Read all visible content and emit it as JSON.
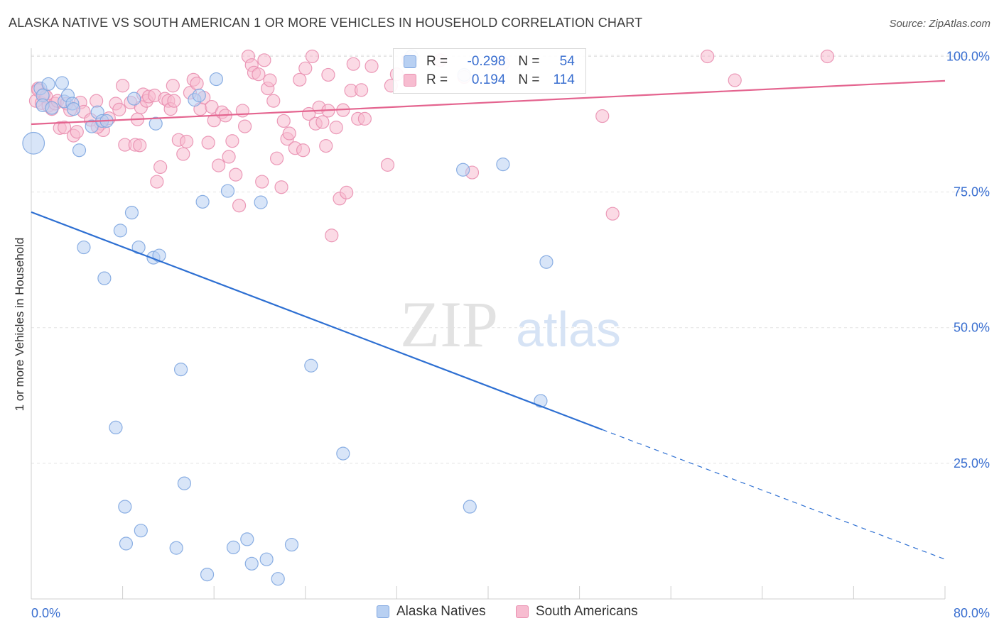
{
  "title": "ALASKA NATIVE VS SOUTH AMERICAN 1 OR MORE VEHICLES IN HOUSEHOLD CORRELATION CHART",
  "source": "Source: ZipAtlas.com",
  "watermark": {
    "zip": "ZIP",
    "atlas": "atlas"
  },
  "legend": {
    "rows": [
      {
        "r_label": "R =",
        "r_value": "-0.298",
        "n_label": "N =",
        "n_value": "54"
      },
      {
        "r_label": "R =",
        "r_value": "0.194",
        "n_label": "N =",
        "n_value": "114"
      }
    ]
  },
  "colors": {
    "blue_fill": "#b8d0f2",
    "blue_stroke": "#7ea6e0",
    "blue_line": "#2d6fd2",
    "pink_fill": "#f7bcd0",
    "pink_stroke": "#e98fb0",
    "pink_line": "#e4648f",
    "tick_label": "#3a6fd0",
    "grid": "#e3e3e3"
  },
  "chart_data": {
    "type": "scatter",
    "title": "ALASKA NATIVE VS SOUTH AMERICAN 1 OR MORE VEHICLES IN HOUSEHOLD CORRELATION CHART",
    "xlabel": "",
    "ylabel": "1 or more Vehicles in Household",
    "xlim": [
      0,
      80
    ],
    "ylim": [
      0,
      101.5
    ],
    "x_tick_labels": [
      "0.0%",
      "80.0%"
    ],
    "y_tick_labels": [
      {
        "value": 25,
        "label": "25.0%"
      },
      {
        "value": 50,
        "label": "50.0%"
      },
      {
        "value": 75,
        "label": "75.0%"
      },
      {
        "value": 100,
        "label": "100.0%"
      }
    ],
    "grid": true,
    "legend_position": "bottom",
    "series": [
      {
        "name": "Alaska Natives",
        "trend": {
          "x0": 0,
          "y0": 71.3,
          "x1": 50,
          "y1": 31.2,
          "dashed_to_x": 80,
          "dashed_to_y": 7.3
        },
        "points": [
          [
            0.2,
            84.0,
            1.7
          ],
          [
            0.8,
            94.1,
            1
          ],
          [
            1.0,
            92.8,
            1
          ],
          [
            1.0,
            91.0,
            1
          ],
          [
            1.5,
            94.9,
            1
          ],
          [
            1.8,
            90.5,
            1
          ],
          [
            2.7,
            95.1,
            1
          ],
          [
            2.9,
            91.7,
            1
          ],
          [
            3.2,
            92.8,
            1
          ],
          [
            3.6,
            91.3,
            1
          ],
          [
            3.7,
            90.3,
            1
          ],
          [
            4.2,
            82.7,
            1
          ],
          [
            4.6,
            64.8,
            1
          ],
          [
            5.3,
            87.1,
            1
          ],
          [
            5.8,
            89.7,
            1
          ],
          [
            6.2,
            88.1,
            1
          ],
          [
            6.4,
            59.1,
            1
          ],
          [
            6.6,
            88.1,
            1
          ],
          [
            7.4,
            31.6,
            1
          ],
          [
            7.8,
            67.9,
            1
          ],
          [
            8.2,
            17.0,
            1
          ],
          [
            8.3,
            10.2,
            1
          ],
          [
            8.8,
            71.2,
            1
          ],
          [
            9.0,
            92.2,
            1
          ],
          [
            9.4,
            64.8,
            1
          ],
          [
            9.6,
            12.6,
            1
          ],
          [
            10.7,
            62.9,
            1
          ],
          [
            10.9,
            87.6,
            1
          ],
          [
            11.2,
            63.3,
            1
          ],
          [
            12.7,
            9.4,
            1
          ],
          [
            13.1,
            42.3,
            1
          ],
          [
            13.4,
            21.3,
            1
          ],
          [
            14.3,
            92.0,
            1
          ],
          [
            14.7,
            92.8,
            1
          ],
          [
            15.0,
            73.2,
            1
          ],
          [
            15.4,
            4.5,
            1
          ],
          [
            16.2,
            95.8,
            1
          ],
          [
            17.2,
            75.2,
            1
          ],
          [
            17.7,
            9.5,
            1
          ],
          [
            18.9,
            11.0,
            1
          ],
          [
            19.3,
            6.5,
            1
          ],
          [
            20.1,
            73.1,
            1
          ],
          [
            20.6,
            7.3,
            1
          ],
          [
            21.6,
            3.7,
            1
          ],
          [
            22.8,
            10.0,
            1
          ],
          [
            24.5,
            43.0,
            1
          ],
          [
            27.3,
            26.8,
            1
          ],
          [
            33.3,
            100.0,
            1
          ],
          [
            37.8,
            79.1,
            1
          ],
          [
            37.9,
            96.6,
            1
          ],
          [
            38.4,
            17.0,
            1
          ],
          [
            41.3,
            80.1,
            1
          ],
          [
            44.6,
            36.5,
            1
          ],
          [
            45.1,
            62.1,
            1
          ]
        ]
      },
      {
        "name": "South Americans",
        "trend": {
          "x0": 0,
          "y0": 87.5,
          "x1": 80,
          "y1": 95.5
        },
        "points": [
          [
            0.4,
            91.8,
            1
          ],
          [
            0.6,
            94.1,
            1
          ],
          [
            0.6,
            93.8,
            1
          ],
          [
            0.9,
            91.4,
            1
          ],
          [
            1.1,
            93.0,
            1
          ],
          [
            1.3,
            92.6,
            1
          ],
          [
            1.5,
            90.9,
            1
          ],
          [
            1.8,
            90.3,
            1
          ],
          [
            2.1,
            91.3,
            1
          ],
          [
            2.3,
            91.8,
            1
          ],
          [
            2.5,
            86.8,
            1
          ],
          [
            2.9,
            86.9,
            1
          ],
          [
            3.1,
            91.3,
            1
          ],
          [
            3.4,
            90.1,
            1
          ],
          [
            3.7,
            85.4,
            1
          ],
          [
            4.0,
            86.1,
            1
          ],
          [
            4.3,
            91.5,
            1
          ],
          [
            4.6,
            89.8,
            1
          ],
          [
            5.2,
            88.3,
            1
          ],
          [
            5.7,
            91.8,
            1
          ],
          [
            6.1,
            87.6,
            1
          ],
          [
            6.3,
            86.4,
            1
          ],
          [
            6.8,
            88.6,
            1
          ],
          [
            7.4,
            91.3,
            1
          ],
          [
            7.7,
            90.2,
            1
          ],
          [
            8.0,
            94.6,
            1
          ],
          [
            8.2,
            83.7,
            1
          ],
          [
            8.7,
            91.5,
            1
          ],
          [
            9.1,
            83.7,
            1
          ],
          [
            9.3,
            88.4,
            1
          ],
          [
            9.6,
            90.6,
            1
          ],
          [
            9.8,
            93.0,
            1
          ],
          [
            10.1,
            91.8,
            1
          ],
          [
            10.3,
            92.6,
            1
          ],
          [
            10.8,
            92.8,
            1
          ],
          [
            11.0,
            76.9,
            1
          ],
          [
            11.3,
            79.6,
            1
          ],
          [
            11.7,
            92.2,
            1
          ],
          [
            12.0,
            91.8,
            1
          ],
          [
            12.2,
            90.3,
            1
          ],
          [
            12.4,
            94.6,
            1
          ],
          [
            12.9,
            84.6,
            1
          ],
          [
            13.3,
            82.0,
            1
          ],
          [
            13.6,
            84.3,
            1
          ],
          [
            13.9,
            93.3,
            1
          ],
          [
            14.2,
            95.7,
            1
          ],
          [
            14.5,
            95.0,
            1
          ],
          [
            14.8,
            90.3,
            1
          ],
          [
            15.1,
            92.4,
            1
          ],
          [
            15.5,
            84.1,
            1
          ],
          [
            15.8,
            90.7,
            1
          ],
          [
            16.0,
            88.2,
            1
          ],
          [
            16.4,
            79.9,
            1
          ],
          [
            16.7,
            89.7,
            1
          ],
          [
            17.0,
            89.1,
            1
          ],
          [
            17.3,
            81.5,
            1
          ],
          [
            17.6,
            84.4,
            1
          ],
          [
            17.9,
            78.2,
            1
          ],
          [
            18.2,
            72.5,
            1
          ],
          [
            18.5,
            90.0,
            1
          ],
          [
            18.7,
            87.1,
            1
          ],
          [
            19.0,
            100.0,
            1
          ],
          [
            19.3,
            98.4,
            1
          ],
          [
            19.5,
            97.0,
            1
          ],
          [
            19.9,
            96.7,
            1
          ],
          [
            20.2,
            76.9,
            1
          ],
          [
            20.4,
            99.3,
            1
          ],
          [
            20.7,
            94.1,
            1
          ],
          [
            20.9,
            95.6,
            1
          ],
          [
            21.2,
            91.8,
            1
          ],
          [
            21.5,
            81.2,
            1
          ],
          [
            21.9,
            75.9,
            1
          ],
          [
            22.1,
            88.1,
            1
          ],
          [
            22.4,
            84.8,
            1
          ],
          [
            22.6,
            85.8,
            1
          ],
          [
            23.1,
            83.1,
            1
          ],
          [
            23.5,
            95.7,
            1
          ],
          [
            23.8,
            82.7,
            1
          ],
          [
            24.0,
            97.8,
            1
          ],
          [
            24.3,
            89.4,
            1
          ],
          [
            24.6,
            100.0,
            1
          ],
          [
            24.9,
            87.6,
            1
          ],
          [
            25.2,
            90.6,
            1
          ],
          [
            25.5,
            87.9,
            1
          ],
          [
            25.8,
            83.5,
            1
          ],
          [
            26.0,
            90.0,
            1
          ],
          [
            26.3,
            67.0,
            1
          ],
          [
            26.7,
            86.9,
            1
          ],
          [
            27.0,
            73.8,
            1
          ],
          [
            27.3,
            90.1,
            1
          ],
          [
            27.6,
            74.9,
            1
          ],
          [
            28.0,
            93.7,
            1
          ],
          [
            28.2,
            98.6,
            1
          ],
          [
            28.6,
            88.5,
            1
          ],
          [
            28.9,
            93.8,
            1
          ],
          [
            29.2,
            88.5,
            1
          ],
          [
            29.8,
            98.2,
            1
          ],
          [
            31.2,
            80.0,
            1
          ],
          [
            31.5,
            94.6,
            1
          ],
          [
            32.0,
            96.7,
            1
          ],
          [
            33.0,
            99.3,
            1
          ],
          [
            35.8,
            99.3,
            1
          ],
          [
            37.9,
            96.2,
            1
          ],
          [
            38.6,
            78.6,
            1
          ],
          [
            41.3,
            98.7,
            1
          ],
          [
            50.0,
            89.0,
            1
          ],
          [
            50.9,
            71.0,
            1
          ],
          [
            59.2,
            100.0,
            1
          ],
          [
            61.6,
            95.6,
            1
          ],
          [
            69.7,
            100.0,
            1
          ],
          [
            9.5,
            83.6,
            1
          ],
          [
            12.5,
            91.8,
            1
          ],
          [
            26.0,
            96.6,
            1
          ],
          [
            5.8,
            87.0,
            1
          ]
        ]
      }
    ]
  }
}
